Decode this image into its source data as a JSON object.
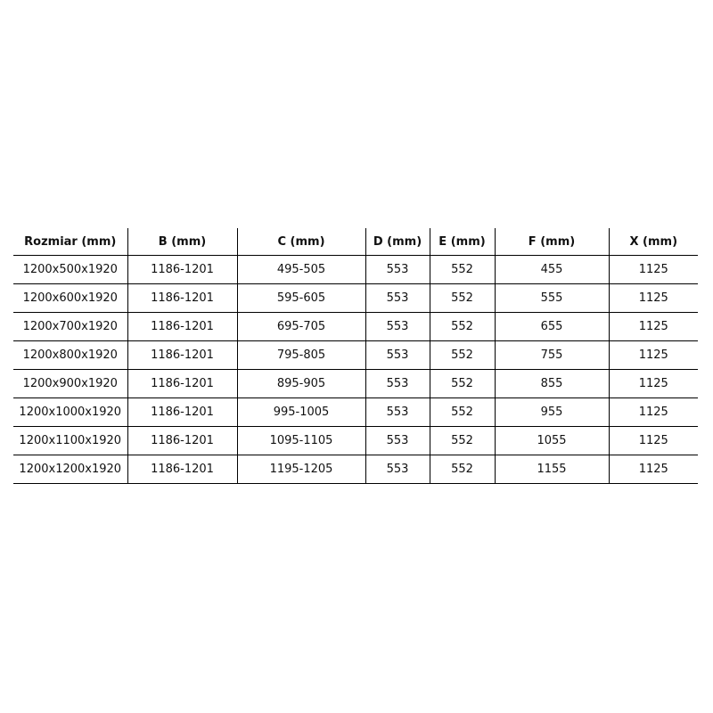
{
  "table": {
    "headers": [
      "Rozmiar (mm)",
      "B (mm)",
      "C (mm)",
      "D (mm)",
      "E (mm)",
      "F (mm)",
      "X (mm)"
    ],
    "rows": [
      [
        "1200x500x1920",
        "1186-1201",
        "495-505",
        "553",
        "552",
        "455",
        "1125"
      ],
      [
        "1200x600x1920",
        "1186-1201",
        "595-605",
        "553",
        "552",
        "555",
        "1125"
      ],
      [
        "1200x700x1920",
        "1186-1201",
        "695-705",
        "553",
        "552",
        "655",
        "1125"
      ],
      [
        "1200x800x1920",
        "1186-1201",
        "795-805",
        "553",
        "552",
        "755",
        "1125"
      ],
      [
        "1200x900x1920",
        "1186-1201",
        "895-905",
        "553",
        "552",
        "855",
        "1125"
      ],
      [
        "1200x1000x1920",
        "1186-1201",
        "995-1005",
        "553",
        "552",
        "955",
        "1125"
      ],
      [
        "1200x1100x1920",
        "1186-1201",
        "1095-1105",
        "553",
        "552",
        "1055",
        "1125"
      ],
      [
        "1200x1200x1920",
        "1186-1201",
        "1195-1205",
        "553",
        "552",
        "1155",
        "1125"
      ]
    ]
  }
}
